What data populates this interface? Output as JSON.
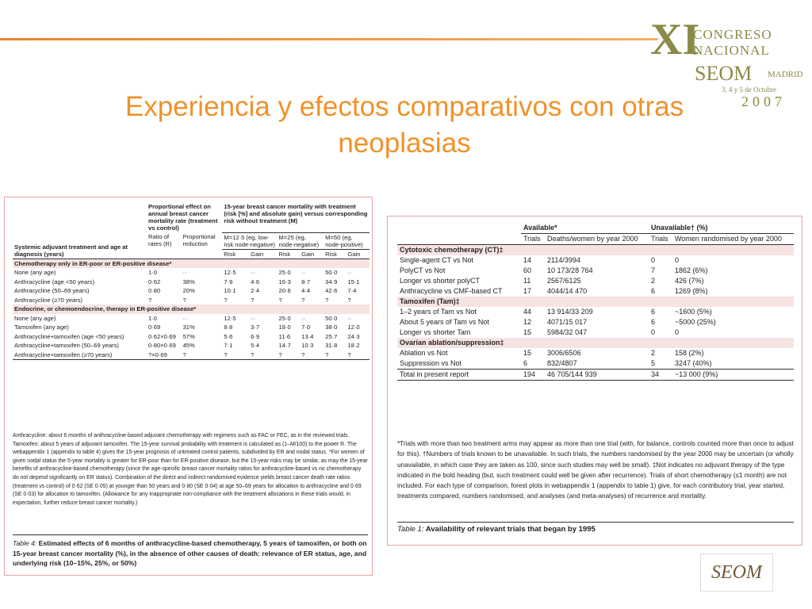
{
  "header": {
    "title": "Experiencia y efectos comparativos con otras neoplasias",
    "logo": {
      "numeral": "XI",
      "line1": "CONGRESO",
      "line2": "NACIONAL",
      "brand": "SEOM",
      "city": "MADRID",
      "dates": "3, 4 y 5 de Octubre",
      "year": "2007"
    }
  },
  "table4": {
    "stub_header": "Systemic adjuvant treatment and age at diagnosis (years)",
    "group1": "Proportional effect on annual breast cancer mortality rate (treatment vs control)",
    "group1_cols": [
      "Ratio of rates (R)",
      "Proportional reduction"
    ],
    "group2": "15-year breast cancer mortality with treatment (risk [%] and absolute gain) versus corresponding risk without treatment (M)",
    "group2_cols": [
      "M=12·5 (eg, low-risk node-negative)",
      "M=25 (eg, node-negative)",
      "M=50 (eg, node-positive)"
    ],
    "subcols": [
      "Risk",
      "Gain",
      "Risk",
      "Gain",
      "Risk",
      "Gain"
    ],
    "sections": [
      {
        "heading": "Chemotherapy only in ER-poor or ER-positive disease*",
        "rows": [
          [
            "None (any age)",
            "1·0",
            "··",
            "12·5",
            "··",
            "25·0",
            "··",
            "50·0",
            "··"
          ],
          [
            "Anthracycline (age <50 years)",
            "0·62",
            "38%",
            "7·9",
            "4·6",
            "16·3",
            "8·7",
            "34·9",
            "15·1"
          ],
          [
            "Anthracycline (50–69 years)",
            "0·80",
            "20%",
            "10·1",
            "2·4",
            "20·6",
            "4·4",
            "42·6",
            "7·4"
          ],
          [
            "Anthracycline (≥70 years)",
            "?",
            "?",
            "?",
            "?",
            "?",
            "?",
            "?",
            "?"
          ]
        ]
      },
      {
        "heading": "Endocrine, or chemoendocrine, therapy in ER-positive disease*",
        "rows": [
          [
            "None (any age)",
            "1·0",
            "··",
            "12·5",
            "··",
            "25·0",
            "··",
            "50·0",
            "··"
          ],
          [
            "Tamoxifen (any age)",
            "0·69",
            "31%",
            "8·8",
            "3·7",
            "18·0",
            "7·0",
            "38·0",
            "12·0"
          ],
          [
            "Anthracycline+tamoxifen (age <50 years)",
            "0·62×0·69",
            "57%",
            "5·6",
            "6·9",
            "11·6",
            "13·4",
            "25·7",
            "24·3"
          ],
          [
            "Anthracycline+tamoxifen (50–69 years)",
            "0·80×0·69",
            "45%",
            "7·1",
            "5·4",
            "14·7",
            "10·3",
            "31·8",
            "18·2"
          ],
          [
            "Anthracycline+tamoxifen (≥70 years)",
            "?×0·69",
            "?",
            "?",
            "?",
            "?",
            "?",
            "?",
            "?"
          ]
        ]
      }
    ],
    "notes": "Anthracycline: about 6 months of anthracycline-based adjuvant chemotherapy with regimens such as FAC or FEC, as in the reviewed trials. Tamoxifen: about 5 years of adjuvant tamoxifen. The 15-year survival probability with treatment is calculated as (1–M/100) to the power R. The webappendix 1 (appendix to table 4) gives the 15-year prognosis of untreated control patients, subdivided by ER and nodal status. *For women of given nodal status the 5-year mortality is greater for ER-poor than for ER-positive disease, but the 15-year risks may be similar, as may the 15-year benefits of anthracycline-based chemotherapy (since the age-specific breast cancer mortality ratios for anthracycline-based vs no chemotherapy do not depend significantly on ER status). Combination of the direct and indirect randomised evidence yields breast cancer death rate ratios (treatment vs control) of 0·62 (SE 0·05) at younger than 50 years and 0·80 (SE 0·04) at age 50–69 years for allocation to anthracycline and 0·69 (SE 0·03) for allocation to tamoxifen. (Allowance for any inappropriate non-compliance with the treatment allocations in these trials would, in expectation, further reduce breast cancer mortality.)",
    "caption_label": "Table 4:",
    "caption": "Estimated effects of 6 months of anthracycline-based chemotherapy, 5 years of tamoxifen, or both on 15-year breast cancer mortality (%), in the absence of other causes of death: relevance of ER status, age, and underlying risk (10–15%, 25%, or 50%)"
  },
  "table1": {
    "group_headers": [
      "Available*",
      "Unavailable† (%)"
    ],
    "cols": [
      "Trials",
      "Deaths/women by year 2000",
      "Trials",
      "Women randomised by year 2000"
    ],
    "sections": [
      {
        "heading": "Cytotoxic chemotherapy (CT)‡",
        "rows": [
          [
            "Single-agent CT vs Not",
            "14",
            "2114/3994",
            "0",
            "0"
          ],
          [
            "PolyCT vs Not",
            "60",
            "10 173/28 764",
            "7",
            "1862 (6%)"
          ],
          [
            "Longer vs shorter polyCT",
            "11",
            "2567/6125",
            "2",
            "426 (7%)"
          ],
          [
            "Anthracycline vs CMF-based CT",
            "17",
            "4044/14 470",
            "6",
            "1269 (8%)"
          ]
        ]
      },
      {
        "heading": "Tamoxifen (Tam)‡",
        "rows": [
          [
            "1–2 years of Tam vs Not",
            "44",
            "13 914/33 209",
            "6",
            "~1600 (5%)"
          ],
          [
            "About 5 years of Tam vs Not",
            "12",
            "4071/15 017",
            "6",
            "~5000 (25%)"
          ],
          [
            "Longer vs shorter Tam",
            "15",
            "5984/32 047",
            "0",
            "0"
          ]
        ]
      },
      {
        "heading": "Ovarian ablation/suppression‡",
        "rows": [
          [
            "Ablation vs Not",
            "15",
            "3006/6506",
            "2",
            "158 (2%)"
          ],
          [
            "Suppression vs Not",
            "6",
            "832/4807",
            "5",
            "3247 (40%)"
          ]
        ]
      }
    ],
    "total": [
      "Total in present report",
      "194",
      "46 705/144 939",
      "34",
      "~13 000 (9%)"
    ],
    "notes": "*Trials with more than two treatment arms may appear as more than one trial (with, for balance, controls counted more than once to adjust for this). †Numbers of trials known to be unavailable. In such trials, the numbers randomised by the year 2000 may be uncertain (or wholly unavailable, in which case they are taken as 100, since such studies may well be small). ‡Not indicates no adjuvant therapy of the type indicated in the bold heading (but, such treatment could well be given after recurrence). Trials of short chemotherapy (≤1 month) are not included. For each type of comparison, forest plots in webappendix 1 (appendix to table 1) give, for each contributory trial, year started, treatments compared, numbers randomised, and analyses (and meta-analyses) of recurrence and mortality.",
    "caption_label": "Table 1:",
    "caption": "Availability of relevant trials that began by 1995"
  },
  "footer_logo": "SEOM"
}
